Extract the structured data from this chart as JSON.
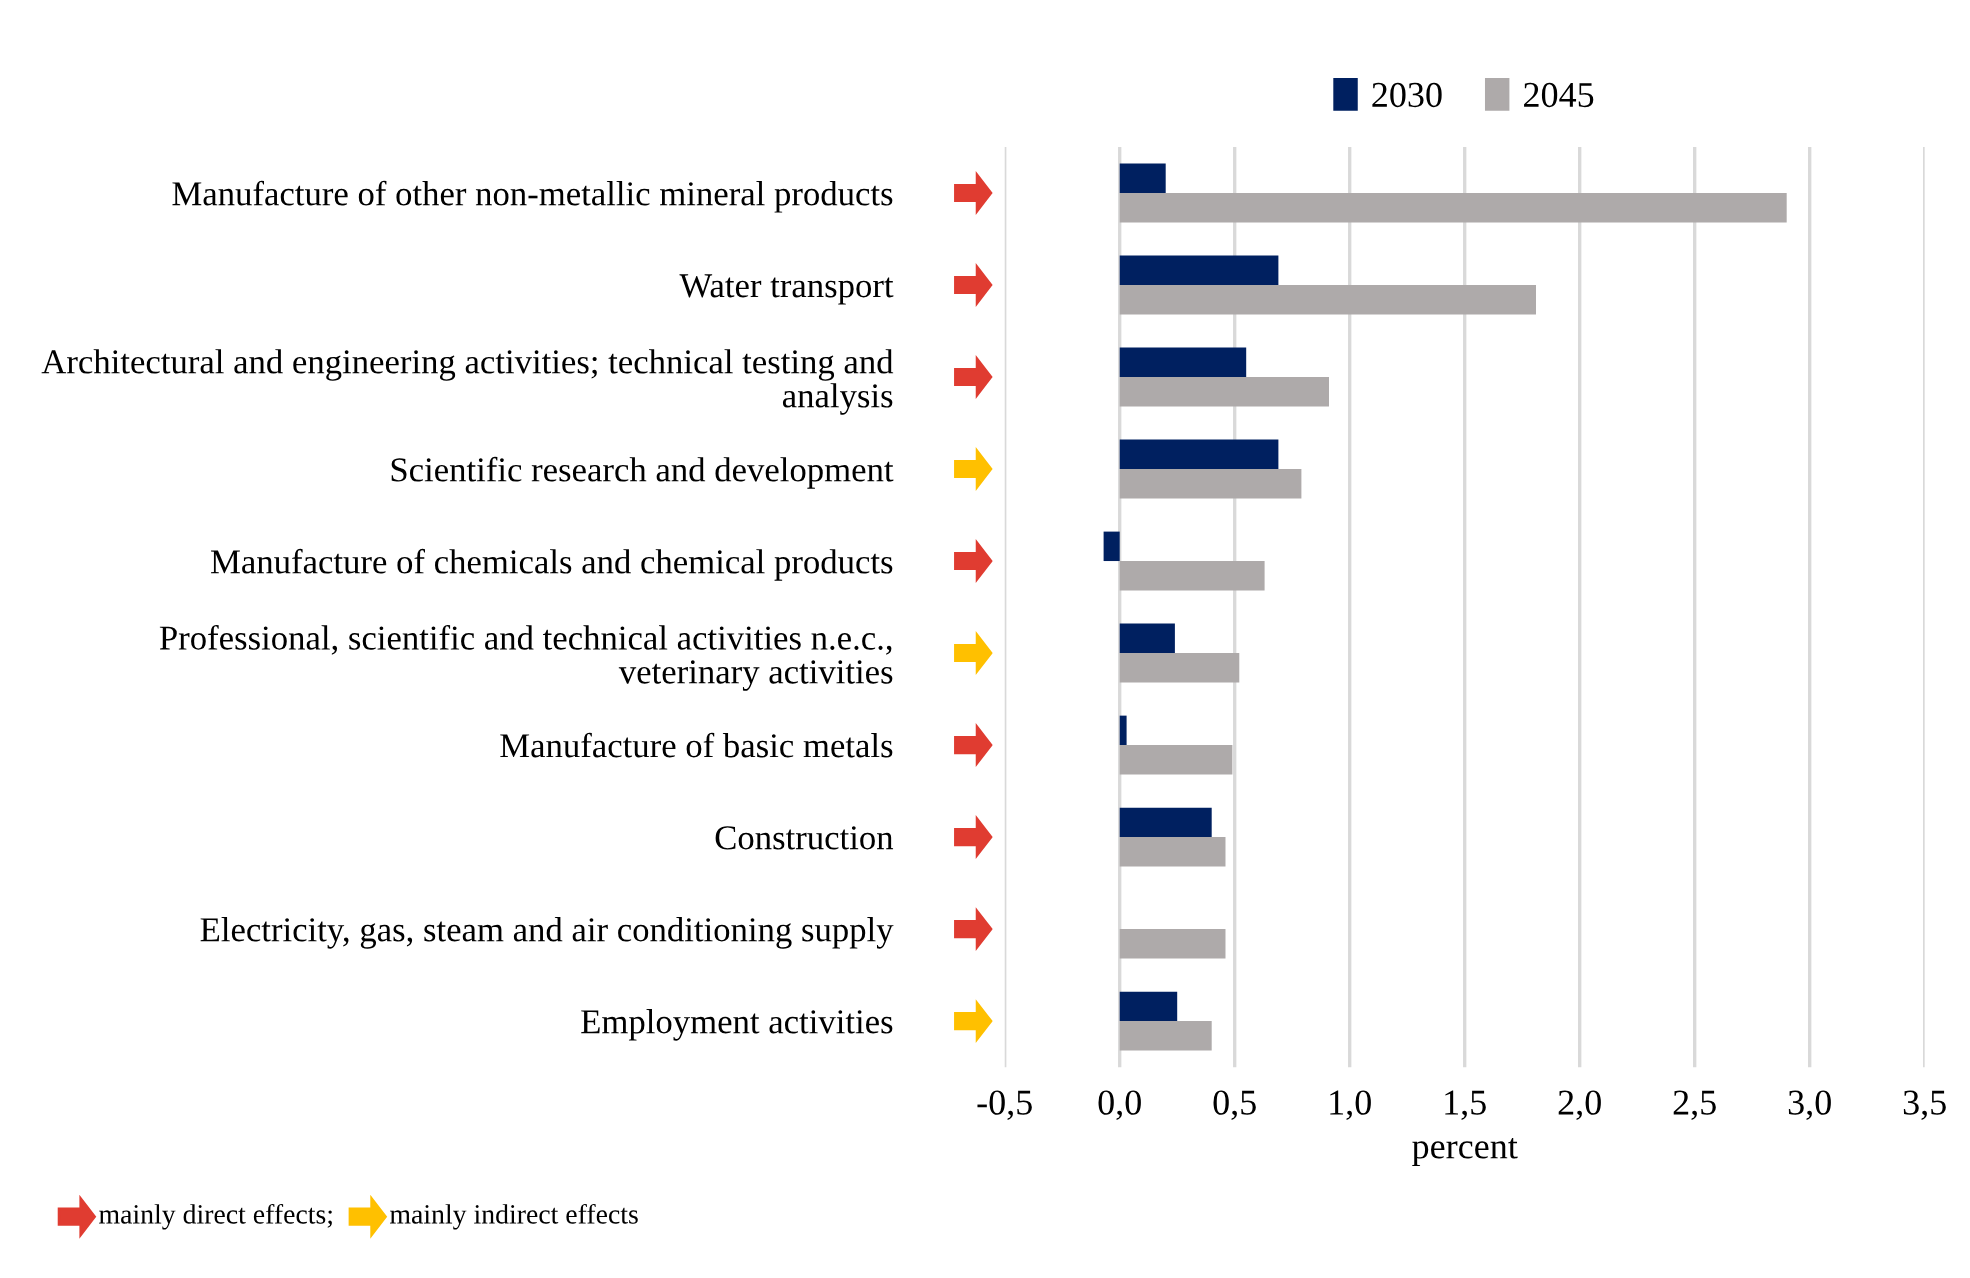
{
  "chart_data": {
    "type": "bar",
    "orientation": "horizontal",
    "categories": [
      "Manufacture of other non-metallic mineral products",
      "Water transport",
      "Architectural and engineering activities; technical testing and\nanalysis",
      "Scientific research and development",
      "Manufacture of chemicals and chemical products",
      "Professional, scientific and technical activities n.e.c.,\nveterinary activities",
      "Manufacture of basic metals",
      "Construction",
      "Electricity, gas, steam and air conditioning supply",
      "Employment activities"
    ],
    "series": [
      {
        "name": "2030",
        "color": "#002060",
        "values": [
          0.2,
          0.69,
          0.55,
          0.69,
          -0.07,
          0.24,
          0.03,
          0.4,
          null,
          0.25
        ]
      },
      {
        "name": "2045",
        "color": "#aeaaaa",
        "values": [
          2.9,
          1.81,
          0.91,
          0.79,
          0.63,
          0.52,
          0.49,
          0.46,
          0.46,
          0.4
        ]
      }
    ],
    "xlabel": "percent",
    "xlim": [
      -0.5,
      3.5
    ],
    "xticks": [
      {
        "value": -0.5,
        "label": "-0,5"
      },
      {
        "value": 0.0,
        "label": "0,0"
      },
      {
        "value": 0.5,
        "label": "0,5"
      },
      {
        "value": 1.0,
        "label": "1,0"
      },
      {
        "value": 1.5,
        "label": "1,5"
      },
      {
        "value": 2.0,
        "label": "2,0"
      },
      {
        "value": 2.5,
        "label": "2,5"
      },
      {
        "value": 3.0,
        "label": "3,0"
      },
      {
        "value": 3.5,
        "label": "3,5"
      }
    ],
    "grid": "x",
    "legend": "top",
    "annotations": [
      "mainly direct effects;",
      "mainly indirect effects"
    ]
  }
}
